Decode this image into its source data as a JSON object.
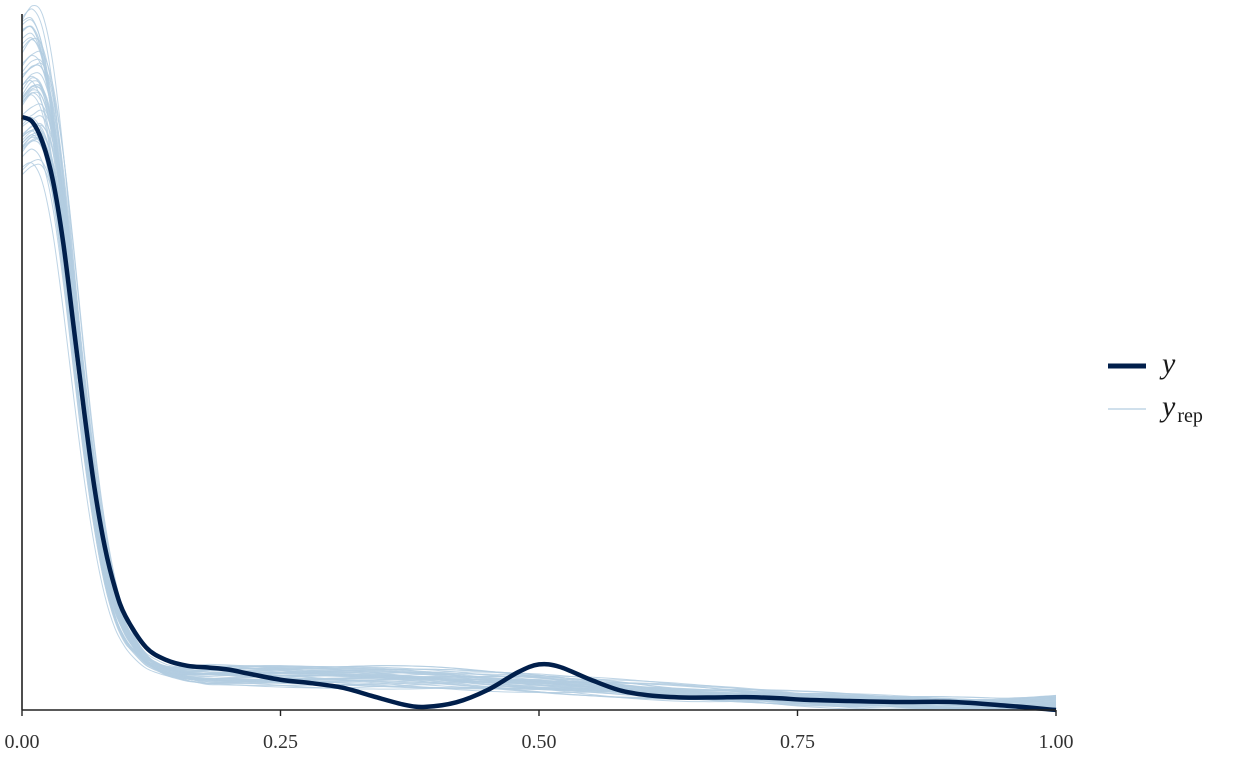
{
  "chart_data": {
    "type": "line",
    "xlim": [
      0.0,
      1.0
    ],
    "x_ticks": [
      0.0,
      0.25,
      0.5,
      0.75,
      1.0
    ],
    "x_tick_labels": [
      "0.00",
      "0.25",
      "0.50",
      "0.75",
      "1.00"
    ],
    "y_axis_labels": false,
    "grid": false,
    "legend_position": "right",
    "colors": {
      "y": "#011f4b",
      "yrep": "#b3cde0"
    },
    "series": [
      {
        "name": "y",
        "role": "observed",
        "x": [
          0.0,
          0.01,
          0.02,
          0.03,
          0.04,
          0.05,
          0.06,
          0.07,
          0.08,
          0.09,
          0.1,
          0.12,
          0.14,
          0.16,
          0.18,
          0.2,
          0.22,
          0.25,
          0.28,
          0.31,
          0.34,
          0.37,
          0.39,
          0.42,
          0.45,
          0.48,
          0.5,
          0.52,
          0.55,
          0.58,
          0.61,
          0.64,
          0.67,
          0.7,
          0.73,
          0.76,
          0.8,
          0.85,
          0.9,
          0.95,
          1.0
        ],
        "y": [
          0.852,
          0.845,
          0.815,
          0.76,
          0.67,
          0.55,
          0.43,
          0.32,
          0.235,
          0.175,
          0.135,
          0.09,
          0.0715,
          0.0635,
          0.061,
          0.058,
          0.052,
          0.0435,
          0.0385,
          0.032,
          0.0195,
          0.0075,
          0.0045,
          0.011,
          0.0285,
          0.0545,
          0.0655,
          0.062,
          0.0435,
          0.0275,
          0.0205,
          0.018,
          0.018,
          0.0185,
          0.017,
          0.0145,
          0.013,
          0.0115,
          0.0115,
          0.0065,
          0.0
        ]
      },
      {
        "name": "",
        "role": "replicated_reference",
        "x": [
          0.0,
          0.01,
          0.02,
          0.03,
          0.04,
          0.05,
          0.06,
          0.07,
          0.08,
          0.09,
          0.1,
          0.12,
          0.14,
          0.16,
          0.18,
          0.2,
          0.25,
          0.3,
          0.35,
          0.4,
          0.45,
          0.5,
          0.55,
          0.6,
          0.65,
          0.7,
          0.75,
          0.8,
          0.85,
          0.9,
          0.95,
          1.0
        ],
        "y": [
          0.87,
          0.89,
          0.88,
          0.82,
          0.71,
          0.57,
          0.43,
          0.31,
          0.215,
          0.15,
          0.11,
          0.07,
          0.055,
          0.05,
          0.049,
          0.049,
          0.0485,
          0.047,
          0.046,
          0.044,
          0.041,
          0.038,
          0.034,
          0.029,
          0.024,
          0.02,
          0.016,
          0.013,
          0.01,
          0.008,
          0.007,
          0.012
        ]
      }
    ],
    "yrep_draw_count": 50,
    "legend": [
      {
        "key": "y",
        "label": "y",
        "subscript": ""
      },
      {
        "key": "yrep",
        "label": "y",
        "subscript": "rep"
      }
    ]
  }
}
